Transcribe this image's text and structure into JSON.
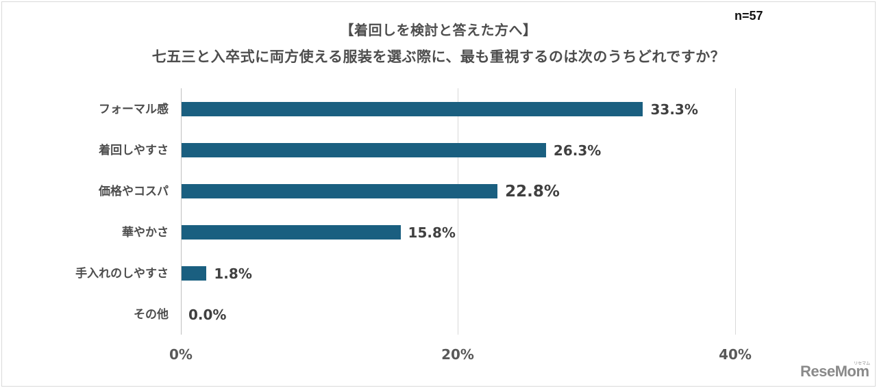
{
  "header": {
    "title_line1": "【着回しを検討と答えた方へ】",
    "title_line2": "七五三と入卒式に両方使える服装を選ぶ際に、最も重視するのは次のうちどれですか？",
    "sample_size": "n=57"
  },
  "axis": {
    "ticks": [
      "0%",
      "20%",
      "40%"
    ]
  },
  "bars": [
    {
      "label": "フォーマル感",
      "value_text": "33.3%"
    },
    {
      "label": "着回しやすさ",
      "value_text": "26.3%"
    },
    {
      "label": "価格やコスパ",
      "value_text": "22.8%"
    },
    {
      "label": "華やかさ",
      "value_text": "15.8%"
    },
    {
      "label": "手入れのしやすさ",
      "value_text": "1.8%"
    },
    {
      "label": "その他",
      "value_text": "0.0%"
    }
  ],
  "watermark": {
    "text": "ReseMom",
    "kana": "リセマム"
  },
  "colors": {
    "bar": "#1a5f80",
    "gridline": "#d9d9d9",
    "text": "#404040"
  },
  "chart_data": {
    "type": "bar",
    "orientation": "horizontal",
    "title": "【着回しを検討と答えた方へ】 七五三と入卒式に両方使える服装を選ぶ際に、最も重視するのは次のうちどれですか？",
    "annotation": "n=57",
    "categories": [
      "フォーマル感",
      "着回しやすさ",
      "価格やコスパ",
      "華やかさ",
      "手入れのしやすさ",
      "その他"
    ],
    "values": [
      33.3,
      26.3,
      22.8,
      15.8,
      1.8,
      0.0
    ],
    "unit": "%",
    "xlabel": "",
    "ylabel": "",
    "xlim": [
      0,
      40
    ],
    "xticks": [
      "0%",
      "20%",
      "40%"
    ],
    "grid": true,
    "legend": null,
    "data_labels": true
  }
}
